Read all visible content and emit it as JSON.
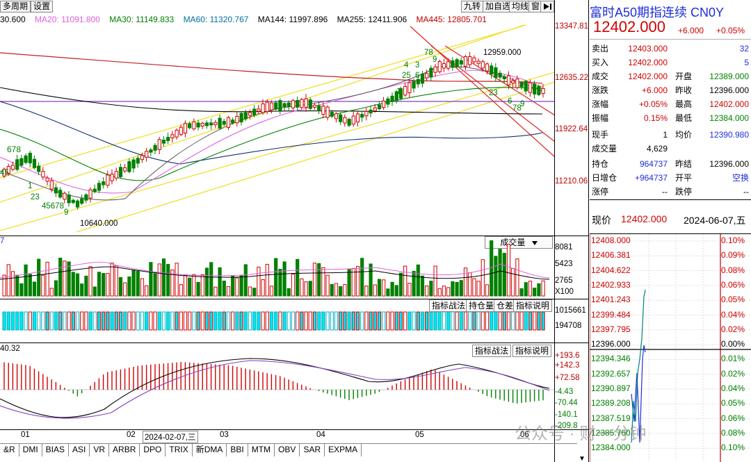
{
  "toolbar": {
    "left": [
      "多周期",
      "设置"
    ],
    "right": [
      "九转",
      "加自选",
      "均线",
      "窗"
    ]
  },
  "ma": [
    "30.600",
    "MA20: 11091.800",
    "MA30: 11149.833",
    "MA60: 11320.767",
    "MA144: 11997.896",
    "MA255: 12411.906",
    "MA445: 12805.701"
  ],
  "ma_colors": [
    "#000000",
    "#e060e0",
    "#008000",
    "#0070a0",
    "#000000",
    "#000000",
    "#c00000"
  ],
  "main": {
    "ylabels": [
      "13347.81",
      "12635.22",
      "11922.64",
      "11210.06"
    ],
    "high_label": "12959.000",
    "low_label": "10640.000",
    "seq_left_top": "678",
    "seq_left_a": "45",
    "seq_left_b": "1",
    "seq_left_c": "23",
    "seq_left_d": "45678",
    "seq_left_e": "9",
    "seq_mid": "78",
    "seq_mid2": "9",
    "seq_mid3": "4",
    "seq_mid4": "3",
    "seq_mid5": "6",
    "seq_mid6": "25",
    "seq_mid7": "1",
    "seq_right_a": "23",
    "seq_right_b": "6",
    "seq_right_c": "78",
    "seq_right_d": "9"
  },
  "volume": {
    "label": "成交量",
    "ylabels": [
      "8081",
      "5423",
      "2765",
      "X100"
    ],
    "corner": "7"
  },
  "ind1": {
    "buttons": [
      "指标战法",
      "持仓量",
      "仓差",
      "指标说明"
    ],
    "ylabels": [
      "1015661",
      "194708"
    ]
  },
  "macd": {
    "value": "40.32",
    "buttons": [
      "指标战法",
      "指标说明"
    ],
    "ylabels": [
      "+193.6",
      "+142.3",
      "+72.58",
      "-4.43",
      "-70.44",
      "-140.1",
      "-209.8"
    ]
  },
  "xaxis": {
    "labels": [
      "01",
      "02",
      "03",
      "04",
      "05",
      "06"
    ],
    "cursor_date": "2024-02-07,三"
  },
  "tabs": [
    "&R",
    "DMI",
    "BIAS",
    "ASI",
    "VR",
    "ARBR",
    "DPO",
    "TRIX",
    "新DMA",
    "BBI",
    "MTM",
    "OBV",
    "SAR",
    "EXPMA"
  ],
  "quote": {
    "title": "富时A50期指连续 CN0Y",
    "price": "12402.000",
    "change": "+6.000",
    "change_pct": "+0.05%",
    "rows": [
      {
        "a": "卖出",
        "b": "12403.000",
        "c": "",
        "d": "32"
      },
      {
        "a": "买入",
        "b": "12402.000",
        "c": "",
        "d": "5"
      },
      {
        "a": "成交",
        "b": "12402.000",
        "c": "开盘",
        "d": "12389.000"
      },
      {
        "a": "涨跌",
        "b": "+6.000",
        "c": "昨收",
        "d": "12396.000"
      },
      {
        "a": "涨幅",
        "b": "+0.05%",
        "c": "最高",
        "d": "12402.000"
      },
      {
        "a": "振幅",
        "b": "0.15%",
        "c": "最低",
        "d": "12384.000"
      },
      {
        "a": "现手",
        "b": "1",
        "c": "均价",
        "d": "12390.980"
      },
      {
        "a": "成交量",
        "b": "4,629",
        "c": "",
        "d": ""
      },
      {
        "a": "持仓",
        "b": "964737",
        "c": "昨结",
        "d": "12396.000"
      },
      {
        "a": "日增仓",
        "b": "+964737",
        "c": "开平",
        "d": "空换"
      },
      {
        "a": "涨停",
        "b": "--",
        "c": "跌停",
        "d": "--"
      }
    ]
  },
  "mini": {
    "label": "现价",
    "price": "12402.000",
    "date": "2024-06-07,五",
    "left": [
      "12408.000",
      "12406.381",
      "12404.622",
      "12402.933",
      "12401.243",
      "12399.484",
      "12397.795",
      "12396.000",
      "12394.346",
      "12392.657",
      "12390.897",
      "12389.208",
      "12387.519",
      "12385.760",
      "12384.000"
    ],
    "right": [
      "0.10%",
      "0.09%",
      "0.08%",
      "0.06%",
      "0.05%",
      "0.04%",
      "0.02%",
      "0.00%",
      "0.01%",
      "0.02%",
      "0.04%",
      "0.05%",
      "0.06%",
      "0.08%",
      "0.10%"
    ]
  },
  "watermark": "公众号 · 财一分钟"
}
